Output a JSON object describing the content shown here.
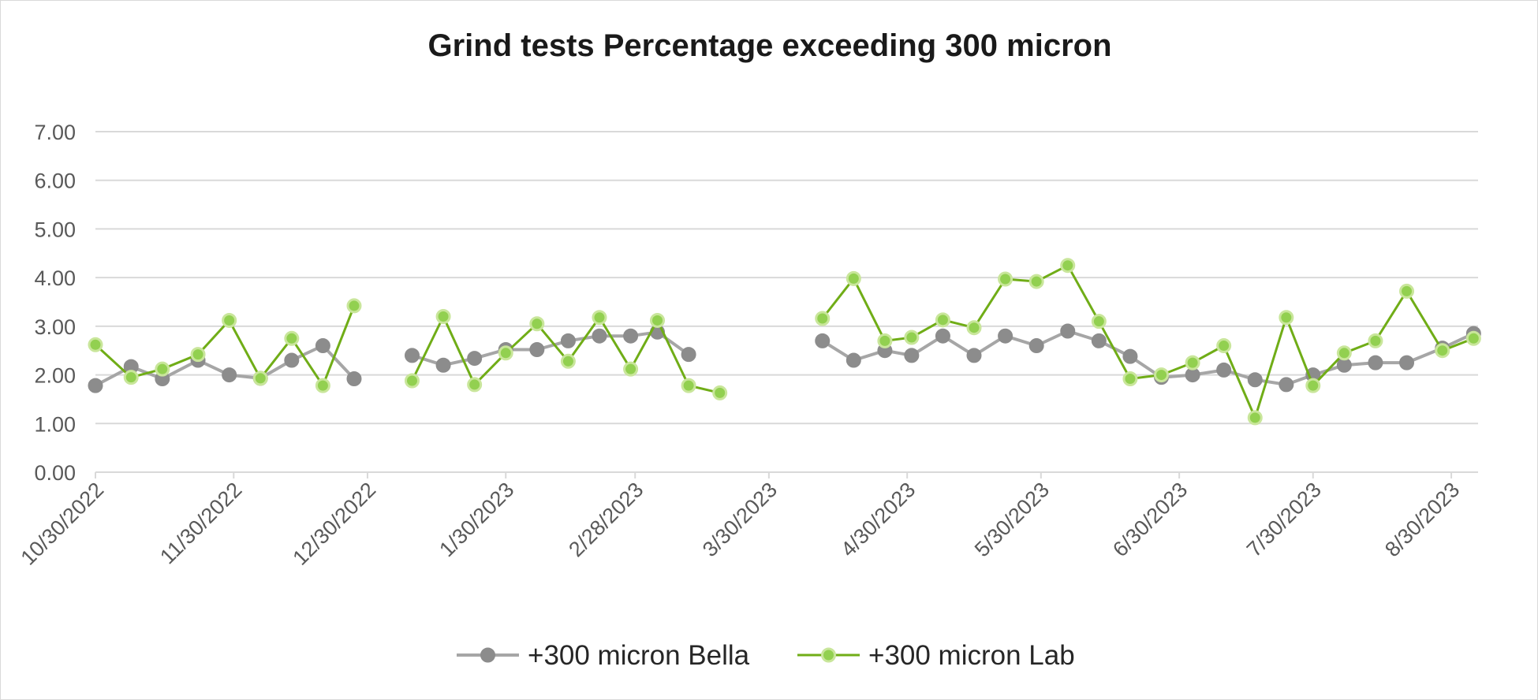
{
  "chart_data": {
    "type": "line",
    "title": "Grind tests Percentage exceeding 300 micron",
    "xlabel": "",
    "ylabel": "",
    "ylim": [
      0,
      7
    ],
    "yticks": [
      "0.00",
      "1.00",
      "2.00",
      "3.00",
      "4.00",
      "5.00",
      "6.00",
      "7.00"
    ],
    "grid": true,
    "legend_position": "bottom",
    "x_axis": {
      "type": "date",
      "range": [
        "2022-10-30",
        "2023-09-05"
      ],
      "tick_dates": [
        "2022-10-30",
        "2022-11-30",
        "2022-12-30",
        "2023-01-30",
        "2023-02-28",
        "2023-03-30",
        "2023-04-30",
        "2023-05-30",
        "2023-06-30",
        "2023-07-30",
        "2023-08-30"
      ],
      "tick_labels": [
        "10/30/2022",
        "11/30/2022",
        "12/30/2022",
        "1/30/2023",
        "2/28/2023",
        "3/30/2023",
        "4/30/2023",
        "5/30/2023",
        "6/30/2023",
        "7/30/2023",
        "8/30/2023"
      ]
    },
    "series": [
      {
        "name": "+300 micron Bella",
        "color": "#a6a6a6",
        "marker_color": "#8c8c8c",
        "marker": "circle",
        "points": [
          [
            "2022-10-30",
            1.78
          ],
          [
            "2022-11-07",
            2.17
          ],
          [
            "2022-11-14",
            1.92
          ],
          [
            "2022-11-22",
            2.3
          ],
          [
            "2022-11-29",
            2.0
          ],
          [
            "2022-12-06",
            1.93
          ],
          [
            "2022-12-13",
            2.3
          ],
          [
            "2022-12-20",
            2.6
          ],
          [
            "2022-12-27",
            1.92
          ],
          null,
          [
            "2023-01-09",
            2.4
          ],
          [
            "2023-01-16",
            2.2
          ],
          [
            "2023-01-23",
            2.34
          ],
          [
            "2023-01-30",
            2.52
          ],
          [
            "2023-02-06",
            2.52
          ],
          [
            "2023-02-13",
            2.7
          ],
          [
            "2023-02-20",
            2.8
          ],
          [
            "2023-02-27",
            2.8
          ],
          [
            "2023-03-05",
            2.88
          ],
          [
            "2023-03-12",
            2.42
          ],
          null,
          [
            "2023-04-11",
            2.7
          ],
          [
            "2023-04-18",
            2.3
          ],
          [
            "2023-04-25",
            2.5
          ],
          [
            "2023-05-01",
            2.4
          ],
          [
            "2023-05-08",
            2.8
          ],
          [
            "2023-05-15",
            2.4
          ],
          [
            "2023-05-22",
            2.8
          ],
          [
            "2023-05-29",
            2.6
          ],
          [
            "2023-06-05",
            2.9
          ],
          [
            "2023-06-12",
            2.7
          ],
          [
            "2023-06-19",
            2.38
          ],
          [
            "2023-06-26",
            1.95
          ],
          [
            "2023-07-03",
            2.0
          ],
          [
            "2023-07-10",
            2.1
          ],
          [
            "2023-07-17",
            1.9
          ],
          [
            "2023-07-24",
            1.8
          ],
          [
            "2023-07-30",
            2.0
          ],
          [
            "2023-08-06",
            2.2
          ],
          [
            "2023-08-13",
            2.25
          ],
          [
            "2023-08-20",
            2.25
          ],
          [
            "2023-08-28",
            2.55
          ],
          [
            "2023-09-04",
            2.85
          ]
        ]
      },
      {
        "name": "+300 micron Lab",
        "color": "#70ad17",
        "marker_color": "#92d050",
        "marker": "circle",
        "points": [
          [
            "2022-10-30",
            2.62
          ],
          [
            "2022-11-07",
            1.95
          ],
          [
            "2022-11-14",
            2.12
          ],
          [
            "2022-11-22",
            2.42
          ],
          [
            "2022-11-29",
            3.12
          ],
          [
            "2022-12-06",
            1.93
          ],
          [
            "2022-12-13",
            2.75
          ],
          [
            "2022-12-20",
            1.78
          ],
          [
            "2022-12-27",
            3.42
          ],
          null,
          [
            "2023-01-09",
            1.88
          ],
          [
            "2023-01-16",
            3.2
          ],
          [
            "2023-01-23",
            1.8
          ],
          [
            "2023-01-30",
            2.45
          ],
          [
            "2023-02-06",
            3.05
          ],
          [
            "2023-02-13",
            2.28
          ],
          [
            "2023-02-20",
            3.18
          ],
          [
            "2023-02-27",
            2.12
          ],
          [
            "2023-03-05",
            3.12
          ],
          [
            "2023-03-12",
            1.78
          ],
          [
            "2023-03-19",
            1.63
          ],
          null,
          [
            "2023-04-11",
            3.16
          ],
          [
            "2023-04-18",
            3.98
          ],
          [
            "2023-04-25",
            2.7
          ],
          [
            "2023-05-01",
            2.77
          ],
          [
            "2023-05-08",
            3.13
          ],
          [
            "2023-05-15",
            2.97
          ],
          [
            "2023-05-22",
            3.97
          ],
          [
            "2023-05-29",
            3.92
          ],
          [
            "2023-06-05",
            4.25
          ],
          [
            "2023-06-12",
            3.1
          ],
          [
            "2023-06-19",
            1.92
          ],
          [
            "2023-06-26",
            2.0
          ],
          [
            "2023-07-03",
            2.25
          ],
          [
            "2023-07-10",
            2.6
          ],
          [
            "2023-07-17",
            1.12
          ],
          [
            "2023-07-24",
            3.18
          ],
          [
            "2023-07-30",
            1.78
          ],
          [
            "2023-08-06",
            2.45
          ],
          [
            "2023-08-13",
            2.7
          ],
          [
            "2023-08-20",
            3.72
          ],
          [
            "2023-08-28",
            2.5
          ],
          [
            "2023-09-04",
            2.75
          ]
        ]
      }
    ]
  }
}
